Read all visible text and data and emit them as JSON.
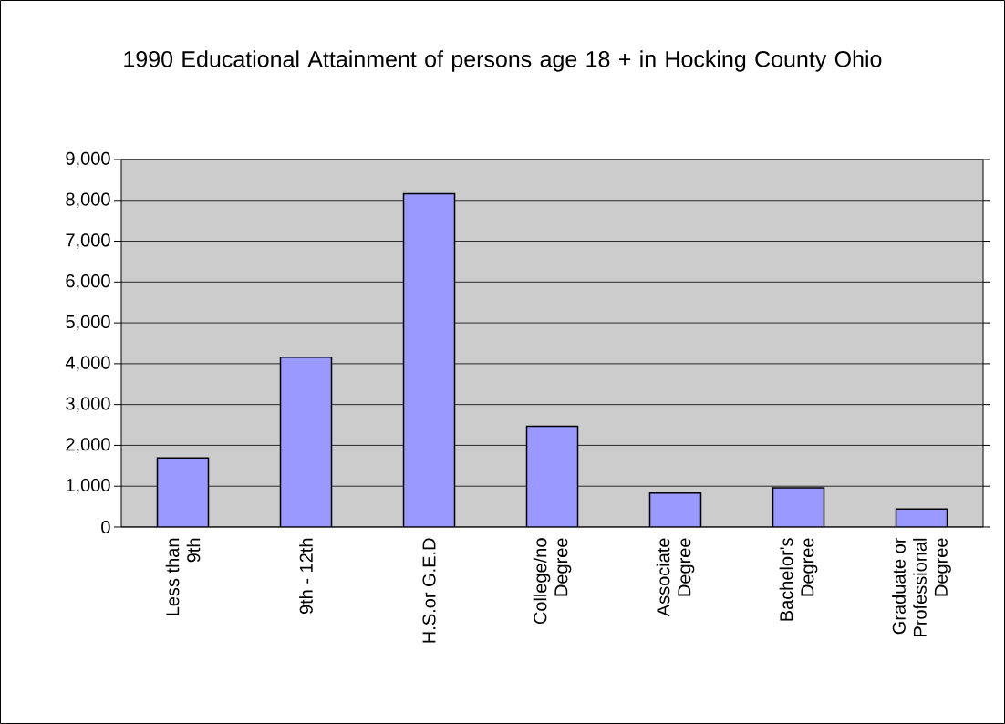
{
  "chart_data": {
    "type": "bar",
    "title": "1990 Educational Attainment of persons age 18 + in Hocking County Ohio",
    "categories": [
      "Less than 9th",
      "9th - 12th",
      "H.S.or G.E.D",
      "College/no Degree",
      "Associate Degree",
      "Bachelor's Degree",
      "Graduate or Professional Degree"
    ],
    "values": [
      1690,
      4160,
      8160,
      2470,
      830,
      960,
      440
    ],
    "color": "#9999ff",
    "ylim": [
      0,
      9000
    ],
    "yticks": [
      0,
      {
        "value": 1000,
        "label": "1,000"
      },
      {
        "value": 2000,
        "label": "2,000"
      },
      {
        "value": 3000,
        "label": "3,000"
      },
      {
        "value": 4000,
        "label": "4,000"
      },
      {
        "value": 5000,
        "label": "5,000"
      },
      {
        "value": 6000,
        "label": "6,000"
      },
      {
        "value": 7000,
        "label": "7,000"
      },
      {
        "value": 8000,
        "label": "8,000"
      },
      {
        "value": 9000,
        "label": "9,000"
      }
    ],
    "grid": "y"
  }
}
